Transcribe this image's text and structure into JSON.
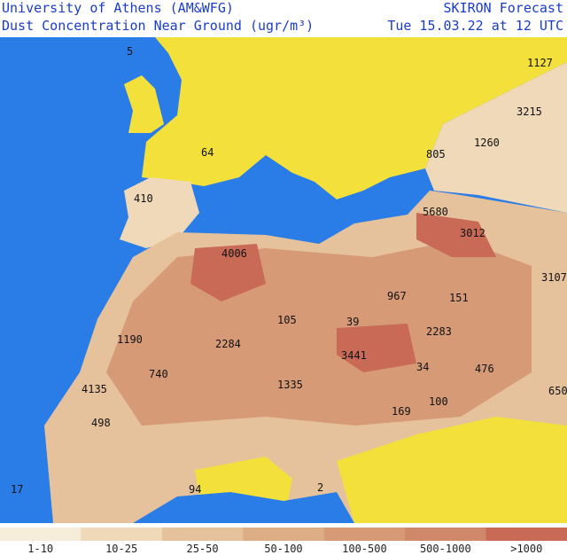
{
  "header": {
    "left_line1": "University of Athens (AM&WFG)",
    "left_line2": "Dust Concentration Near Ground (ugr/m³)",
    "right_line1": "SKIRON Forecast",
    "right_line2": "Tue 15.03.22 at 12 UTC"
  },
  "map": {
    "labels": [
      "5",
      "1127",
      "3215",
      "1260",
      "805",
      "64",
      "410",
      "5680",
      "3012",
      "4006",
      "3107",
      "967",
      "151",
      "105",
      "39",
      "1190",
      "2284",
      "2283",
      "3441",
      "740",
      "34",
      "476",
      "1335",
      "4135",
      "169",
      "100",
      "650",
      "498",
      "17",
      "94",
      "2"
    ]
  },
  "legend": {
    "items": [
      {
        "label": "1-10",
        "color": "#f6ecda"
      },
      {
        "label": "10-25",
        "color": "#efd9b8"
      },
      {
        "label": "25-50",
        "color": "#e6c29c"
      },
      {
        "label": "50-100",
        "color": "#ddad86"
      },
      {
        "label": "100-500",
        "color": "#d69a77"
      },
      {
        "label": "500-1000",
        "color": "#d0886a"
      },
      {
        "label": ">1000",
        "color": "#c96a56"
      }
    ]
  }
}
